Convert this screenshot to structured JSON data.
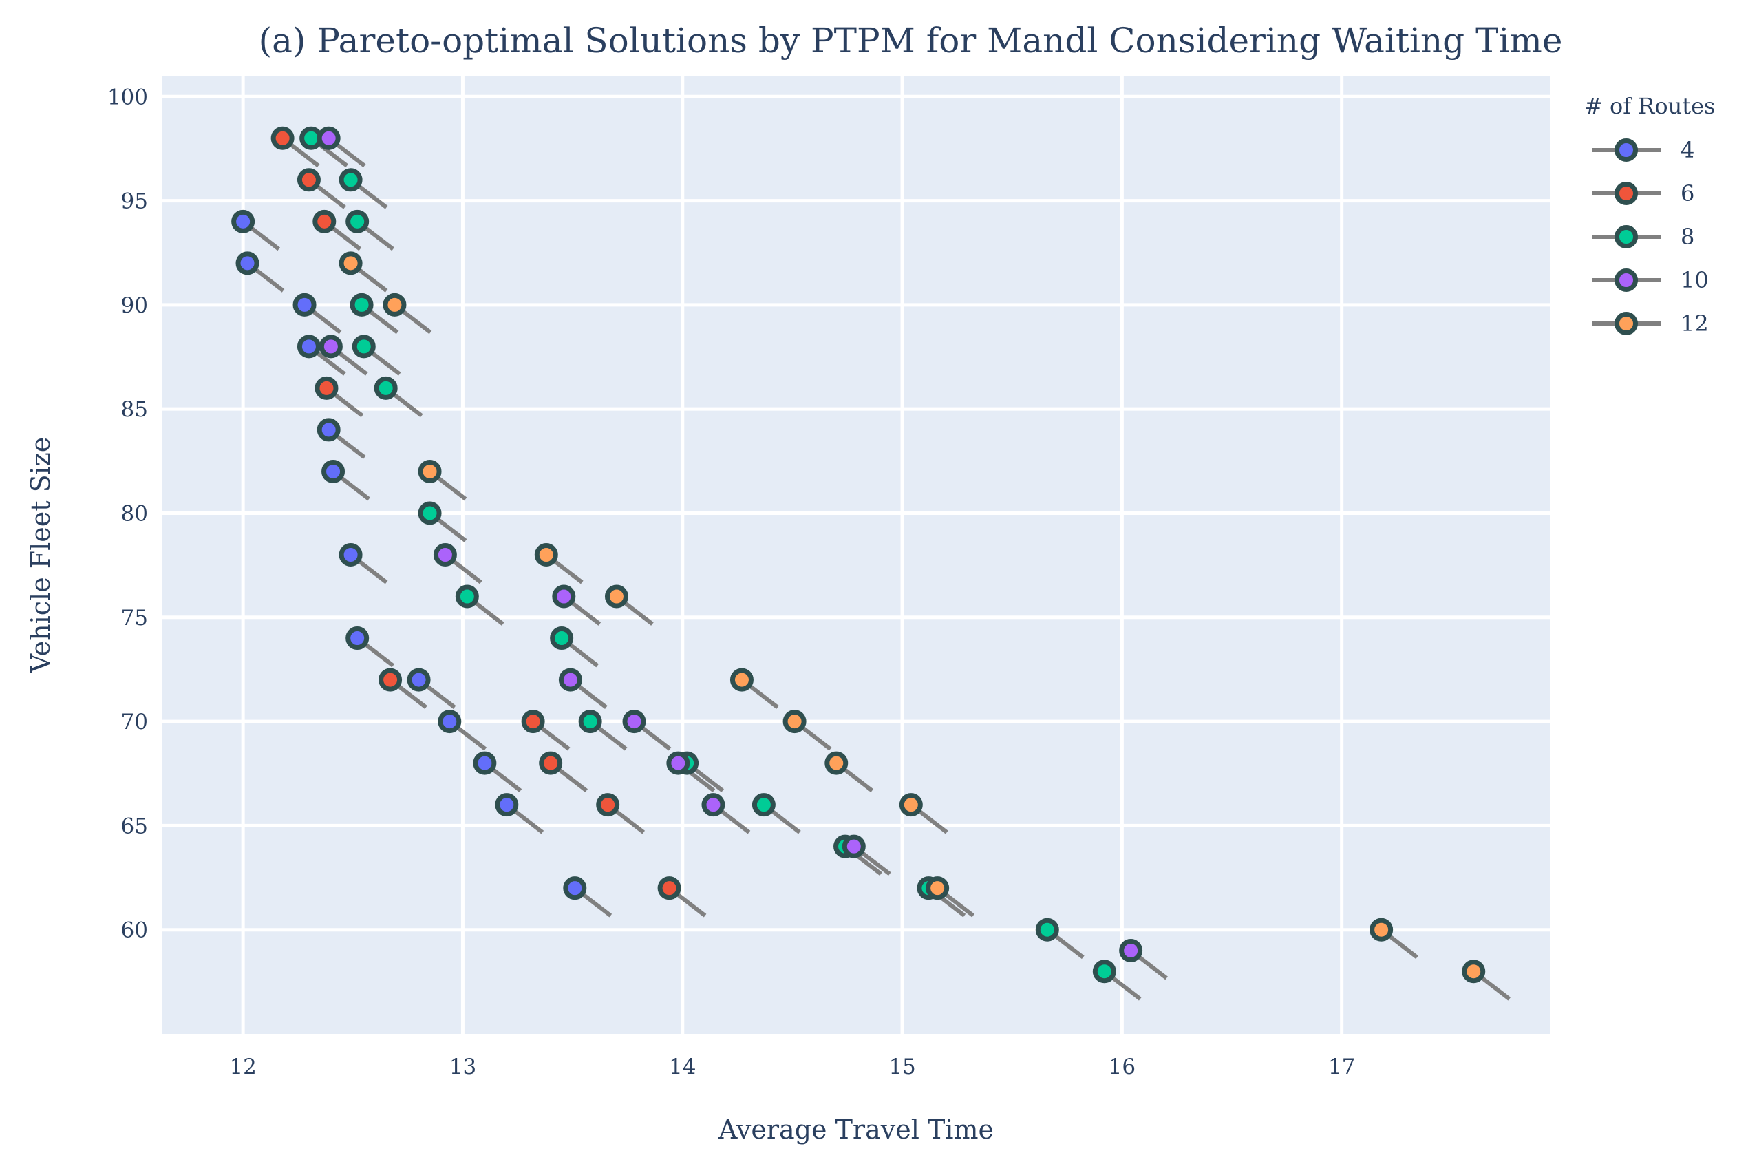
{
  "chart_data": {
    "type": "scatter",
    "title": "(a) Pareto-optimal Solutions by PTPM for Mandl Considering Waiting Time",
    "xlabel": "Average Travel Time",
    "ylabel": "Vehicle Fleet Size",
    "xlim": [
      11.63,
      17.95
    ],
    "ylim": [
      55,
      101
    ],
    "xticks": [
      12,
      13,
      14,
      15,
      16,
      17
    ],
    "yticks": [
      60,
      65,
      70,
      75,
      80,
      85,
      90,
      95,
      100
    ],
    "grid": true,
    "legend_title": "# of Routes",
    "legend_position": "top-right",
    "colors": {
      "plot_bg": "#e5ecf6",
      "grid": "#ffffff",
      "marker_outline": "#2f4f4f",
      "error_line": "#808080",
      "text": "#2a3f5f"
    },
    "series": [
      {
        "name": "4",
        "color": "#636efa",
        "points": [
          {
            "x": 12.0,
            "y": 94
          },
          {
            "x": 12.02,
            "y": 92
          },
          {
            "x": 12.28,
            "y": 90
          },
          {
            "x": 12.3,
            "y": 88
          },
          {
            "x": 12.39,
            "y": 84
          },
          {
            "x": 12.41,
            "y": 82
          },
          {
            "x": 12.49,
            "y": 78
          },
          {
            "x": 12.52,
            "y": 74
          },
          {
            "x": 12.8,
            "y": 72
          },
          {
            "x": 12.94,
            "y": 70
          },
          {
            "x": 13.1,
            "y": 68
          },
          {
            "x": 13.2,
            "y": 66
          },
          {
            "x": 13.51,
            "y": 62
          }
        ]
      },
      {
        "name": "6",
        "color": "#ef553b",
        "points": [
          {
            "x": 12.18,
            "y": 98
          },
          {
            "x": 12.3,
            "y": 96
          },
          {
            "x": 12.37,
            "y": 94
          },
          {
            "x": 12.38,
            "y": 86
          },
          {
            "x": 12.67,
            "y": 72
          },
          {
            "x": 13.32,
            "y": 70
          },
          {
            "x": 13.4,
            "y": 68
          },
          {
            "x": 13.66,
            "y": 66
          },
          {
            "x": 13.94,
            "y": 62
          }
        ]
      },
      {
        "name": "8",
        "color": "#00cc96",
        "points": [
          {
            "x": 12.31,
            "y": 98
          },
          {
            "x": 12.49,
            "y": 96
          },
          {
            "x": 12.52,
            "y": 94
          },
          {
            "x": 12.54,
            "y": 90
          },
          {
            "x": 12.55,
            "y": 88
          },
          {
            "x": 12.65,
            "y": 86
          },
          {
            "x": 12.85,
            "y": 80
          },
          {
            "x": 13.02,
            "y": 76
          },
          {
            "x": 13.45,
            "y": 74
          },
          {
            "x": 13.58,
            "y": 70
          },
          {
            "x": 14.02,
            "y": 68
          },
          {
            "x": 14.37,
            "y": 66
          },
          {
            "x": 14.74,
            "y": 64
          },
          {
            "x": 15.12,
            "y": 62
          },
          {
            "x": 15.66,
            "y": 60
          },
          {
            "x": 15.92,
            "y": 58
          }
        ]
      },
      {
        "name": "10",
        "color": "#ab63fa",
        "points": [
          {
            "x": 12.39,
            "y": 98
          },
          {
            "x": 12.4,
            "y": 88
          },
          {
            "x": 12.92,
            "y": 78
          },
          {
            "x": 13.46,
            "y": 76
          },
          {
            "x": 13.49,
            "y": 72
          },
          {
            "x": 13.78,
            "y": 70
          },
          {
            "x": 13.98,
            "y": 68
          },
          {
            "x": 14.14,
            "y": 66
          },
          {
            "x": 14.78,
            "y": 64
          },
          {
            "x": 16.04,
            "y": 59
          }
        ]
      },
      {
        "name": "12",
        "color": "#ffa15a",
        "points": [
          {
            "x": 12.49,
            "y": 92
          },
          {
            "x": 12.69,
            "y": 90
          },
          {
            "x": 12.85,
            "y": 82
          },
          {
            "x": 13.38,
            "y": 78
          },
          {
            "x": 13.7,
            "y": 76
          },
          {
            "x": 14.27,
            "y": 72
          },
          {
            "x": 14.51,
            "y": 70
          },
          {
            "x": 14.7,
            "y": 68
          },
          {
            "x": 15.04,
            "y": 66
          },
          {
            "x": 15.16,
            "y": 62
          },
          {
            "x": 17.18,
            "y": 60
          },
          {
            "x": 17.6,
            "y": 58
          }
        ]
      }
    ]
  }
}
